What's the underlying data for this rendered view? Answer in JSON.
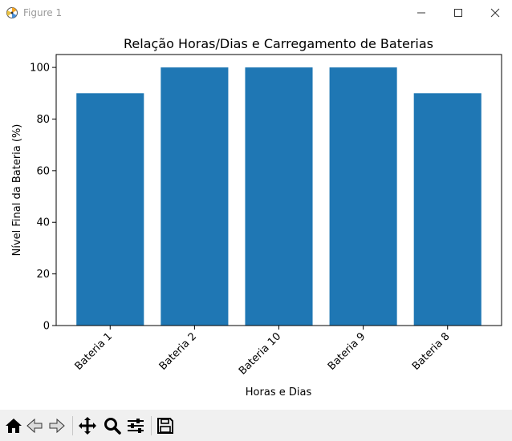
{
  "window": {
    "title": "Figure 1"
  },
  "chart_data": {
    "type": "bar",
    "title": "Relação Horas/Dias e Carregamento de Baterias",
    "xlabel": "Horas e Dias",
    "ylabel": "Nível Final da Bateria (%)",
    "categories": [
      "Bateria 1",
      "Bateria 2",
      "Bateria 10",
      "Bateria 9",
      "Bateria 8"
    ],
    "values": [
      90,
      100,
      100,
      100,
      90
    ],
    "ylim": [
      0,
      105
    ],
    "yticks": [
      "0",
      "20",
      "40",
      "60",
      "80",
      "100"
    ],
    "bar_color": "#1f77b4",
    "grid": false,
    "legend": "none"
  },
  "toolbar": {
    "items": [
      {
        "name": "home-button",
        "icon": "home-icon"
      },
      {
        "name": "back-button",
        "icon": "arrow-left-icon"
      },
      {
        "name": "forward-button",
        "icon": "arrow-right-icon"
      },
      {
        "name": "pan-button",
        "icon": "move-icon"
      },
      {
        "name": "zoom-button",
        "icon": "magnifier-icon"
      },
      {
        "name": "configure-subplots-button",
        "icon": "sliders-icon"
      },
      {
        "name": "save-button",
        "icon": "floppy-disk-icon"
      }
    ]
  }
}
